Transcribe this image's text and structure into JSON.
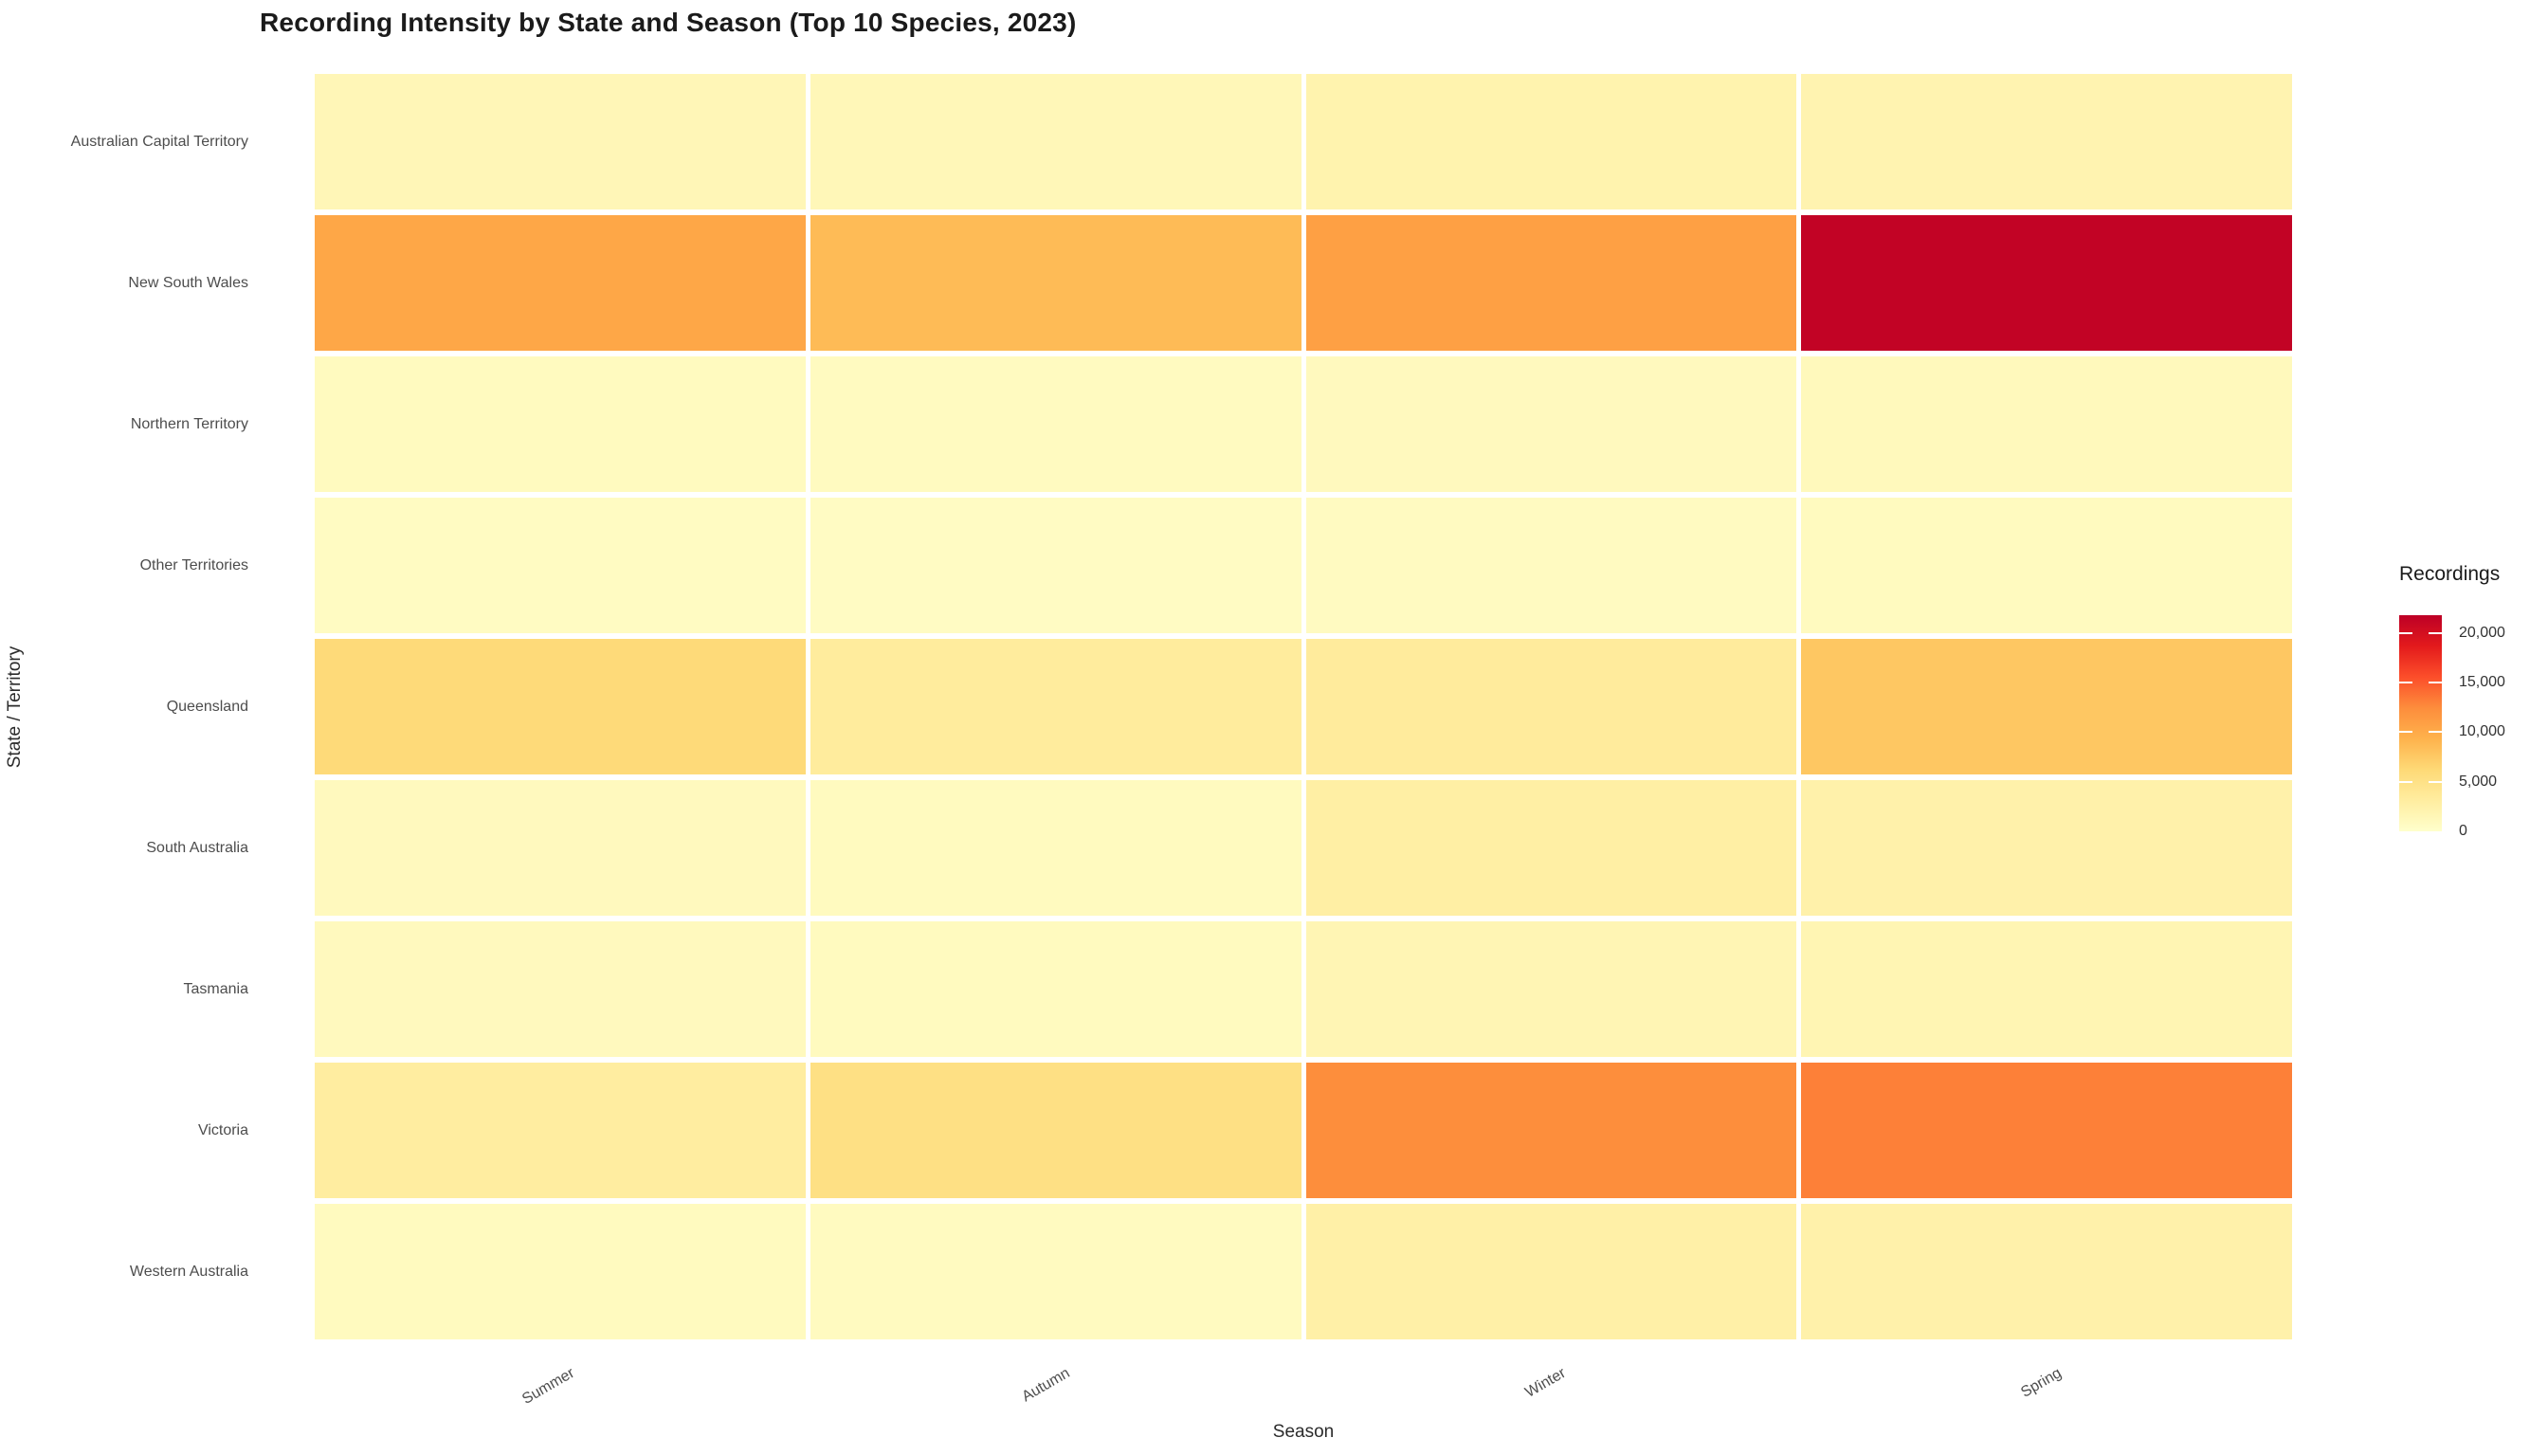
{
  "page": {
    "background": "#ffffff"
  },
  "chart_data": {
    "type": "heatmap",
    "title": "Recording Intensity by State and Season (Top 10 Species, 2023)",
    "xlabel": "Season",
    "ylabel": "State / Territory",
    "x_categories": [
      "Summer",
      "Autumn",
      "Winter",
      "Spring"
    ],
    "y_categories": [
      "Australian Capital Territory",
      "New South Wales",
      "Northern Territory",
      "Other Territories",
      "Queensland",
      "South Australia",
      "Tasmania",
      "Victoria",
      "Western Australia"
    ],
    "values": [
      [
        1500,
        1400,
        2100,
        2000
      ],
      [
        10300,
        8600,
        10900,
        21400
      ],
      [
        900,
        850,
        1000,
        1100
      ],
      [
        700,
        650,
        800,
        900
      ],
      [
        6000,
        3300,
        3400,
        7700
      ],
      [
        1000,
        950,
        2800,
        2400
      ],
      [
        1000,
        950,
        1700,
        1800
      ],
      [
        3100,
        5200,
        12400,
        13100
      ],
      [
        900,
        850,
        2600,
        2400
      ]
    ],
    "value_domain": {
      "min": 0,
      "max": 21800
    },
    "colormap": {
      "name": "YlOrRd",
      "stops": [
        "#ffffcc",
        "#ffeda0",
        "#fed976",
        "#feb24c",
        "#fd8d3c",
        "#fc4e2a",
        "#e31a1c",
        "#bd0026"
      ]
    },
    "grid_line_color": "#ffffff",
    "legend": {
      "title": "Recordings",
      "position": "right",
      "ticks": [
        {
          "value": 20000,
          "label": "20,000"
        },
        {
          "value": 15000,
          "label": "15,000"
        },
        {
          "value": 10000,
          "label": "10,000"
        },
        {
          "value": 5000,
          "label": "5,000"
        },
        {
          "value": 0,
          "label": "0"
        }
      ]
    },
    "layout_hints": {
      "x_tick_rotation_deg": -30,
      "legend_side": "right",
      "grid": "white cell separators, no outer border"
    }
  }
}
